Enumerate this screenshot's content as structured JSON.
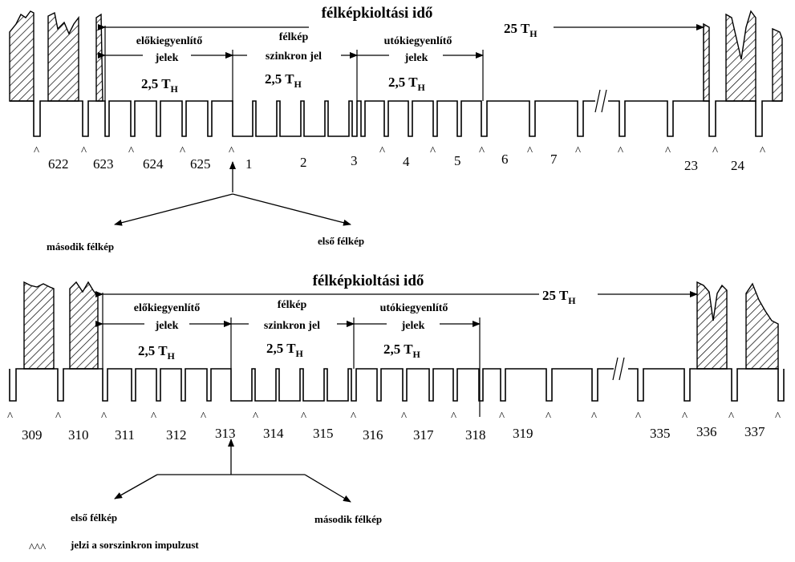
{
  "diagram_top": {
    "title": "félképkioltási idő",
    "span_label": "25 T",
    "span_sub": "H",
    "segments": [
      {
        "line1": "előkiegyenlítő",
        "line2": "jelek",
        "duration": "2,5 T",
        "sub": "H"
      },
      {
        "line1": "félkép",
        "line2": "szinkron jel",
        "duration": "2,5 T",
        "sub": "H"
      },
      {
        "line1": "utókiegyenlítő",
        "line2": "jelek",
        "duration": "2,5 T",
        "sub": "H"
      }
    ],
    "line_numbers": [
      "622",
      "623",
      "624",
      "625",
      "1",
      "2",
      "3",
      "4",
      "5",
      "6",
      "7",
      "23",
      "24"
    ],
    "field_left": "második félkép",
    "field_right": "első félkép"
  },
  "diagram_bottom": {
    "title": "félképkioltási idő",
    "span_label": "25 T",
    "span_sub": "H",
    "segments": [
      {
        "line1": "előkiegyenlítő",
        "line2": "jelek",
        "duration": "2,5 T",
        "sub": "H"
      },
      {
        "line1": "félkép",
        "line2": "szinkron jel",
        "duration": "2,5 T",
        "sub": "H"
      },
      {
        "line1": "utókiegyenlítő",
        "line2": "jelek",
        "duration": "2,5 T",
        "sub": "H"
      }
    ],
    "line_numbers": [
      "309",
      "310",
      "311",
      "312",
      "313",
      "314",
      "315",
      "316",
      "317",
      "318",
      "319",
      "335",
      "336",
      "337"
    ],
    "field_left": "első félkép",
    "field_right": "második félkép"
  },
  "legend": {
    "symbol": "^^^",
    "text": "jelzi a sorszinkron impulzust"
  },
  "icons": [
    "caret-marker-icon",
    "double-slash-break-icon",
    "arrow-icon"
  ]
}
